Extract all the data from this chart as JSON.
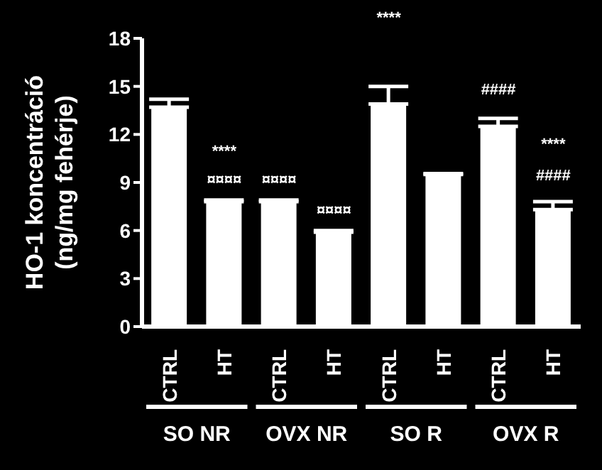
{
  "chart_data": {
    "type": "bar",
    "ylabel": "HO-1 koncentráció\n(ng/mg fehérje)",
    "categories": [
      "CTRL",
      "HT",
      "CTRL",
      "HT",
      "CTRL",
      "HT",
      "CTRL",
      "HT"
    ],
    "values": [
      13.7,
      7.8,
      7.8,
      5.9,
      13.9,
      9.5,
      12.5,
      7.3
    ],
    "errors": [
      [
        13.7,
        14.2
      ],
      [
        7.8,
        7.9
      ],
      [
        7.8,
        7.9
      ],
      [
        5.9,
        6.0
      ],
      [
        13.9,
        15.0
      ],
      [
        9.5,
        9.55
      ],
      [
        12.5,
        13.0
      ],
      [
        7.3,
        7.8
      ]
    ],
    "color": "#ffffff",
    "ylim": [
      0,
      18
    ],
    "yticks": [
      0,
      3,
      6,
      9,
      12,
      15,
      18
    ],
    "grid": false,
    "legend": false,
    "annotations": [
      "****",
      "¤¤¤¤",
      "¤¤¤¤",
      "¤¤¤¤",
      "****",
      "####",
      "****",
      "####",
      "SO NR",
      "OVX NR",
      "SO R",
      "OVX R"
    ]
  }
}
